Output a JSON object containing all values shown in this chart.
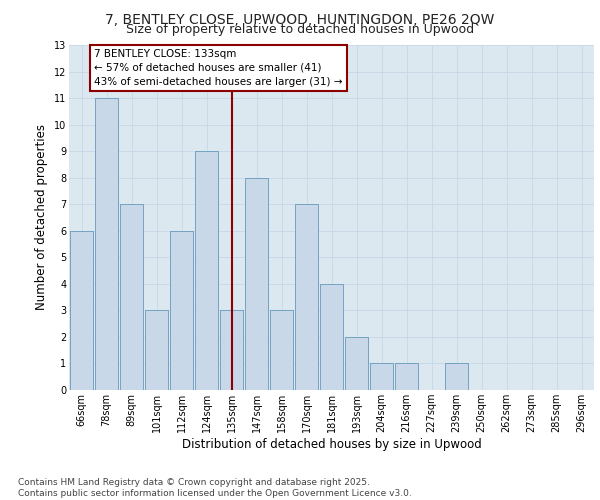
{
  "title_line1": "7, BENTLEY CLOSE, UPWOOD, HUNTINGDON, PE26 2QW",
  "title_line2": "Size of property relative to detached houses in Upwood",
  "xlabel": "Distribution of detached houses by size in Upwood",
  "ylabel": "Number of detached properties",
  "categories": [
    "66sqm",
    "78sqm",
    "89sqm",
    "101sqm",
    "112sqm",
    "124sqm",
    "135sqm",
    "147sqm",
    "158sqm",
    "170sqm",
    "181sqm",
    "193sqm",
    "204sqm",
    "216sqm",
    "227sqm",
    "239sqm",
    "250sqm",
    "262sqm",
    "273sqm",
    "285sqm",
    "296sqm"
  ],
  "values": [
    6,
    11,
    7,
    3,
    6,
    9,
    3,
    8,
    3,
    7,
    4,
    2,
    1,
    1,
    0,
    1,
    0,
    0,
    0,
    0,
    0
  ],
  "bar_color": "#c8d8e8",
  "bar_edge_color": "#6699bb",
  "highlight_index": 6,
  "vline_color": "#8b0000",
  "annotation_text": "7 BENTLEY CLOSE: 133sqm\n← 57% of detached houses are smaller (41)\n43% of semi-detached houses are larger (31) →",
  "annotation_box_edge_color": "#8b0000",
  "annotation_box_face_color": "#ffffff",
  "ylim": [
    0,
    13
  ],
  "yticks": [
    0,
    1,
    2,
    3,
    4,
    5,
    6,
    7,
    8,
    9,
    10,
    11,
    12,
    13
  ],
  "grid_color": "#c8d8e8",
  "bg_color": "#dce8f0",
  "footer_text": "Contains HM Land Registry data © Crown copyright and database right 2025.\nContains public sector information licensed under the Open Government Licence v3.0.",
  "title_fontsize": 10,
  "subtitle_fontsize": 9,
  "axis_label_fontsize": 8.5,
  "tick_fontsize": 7,
  "footer_fontsize": 6.5,
  "annot_fontsize": 7.5
}
